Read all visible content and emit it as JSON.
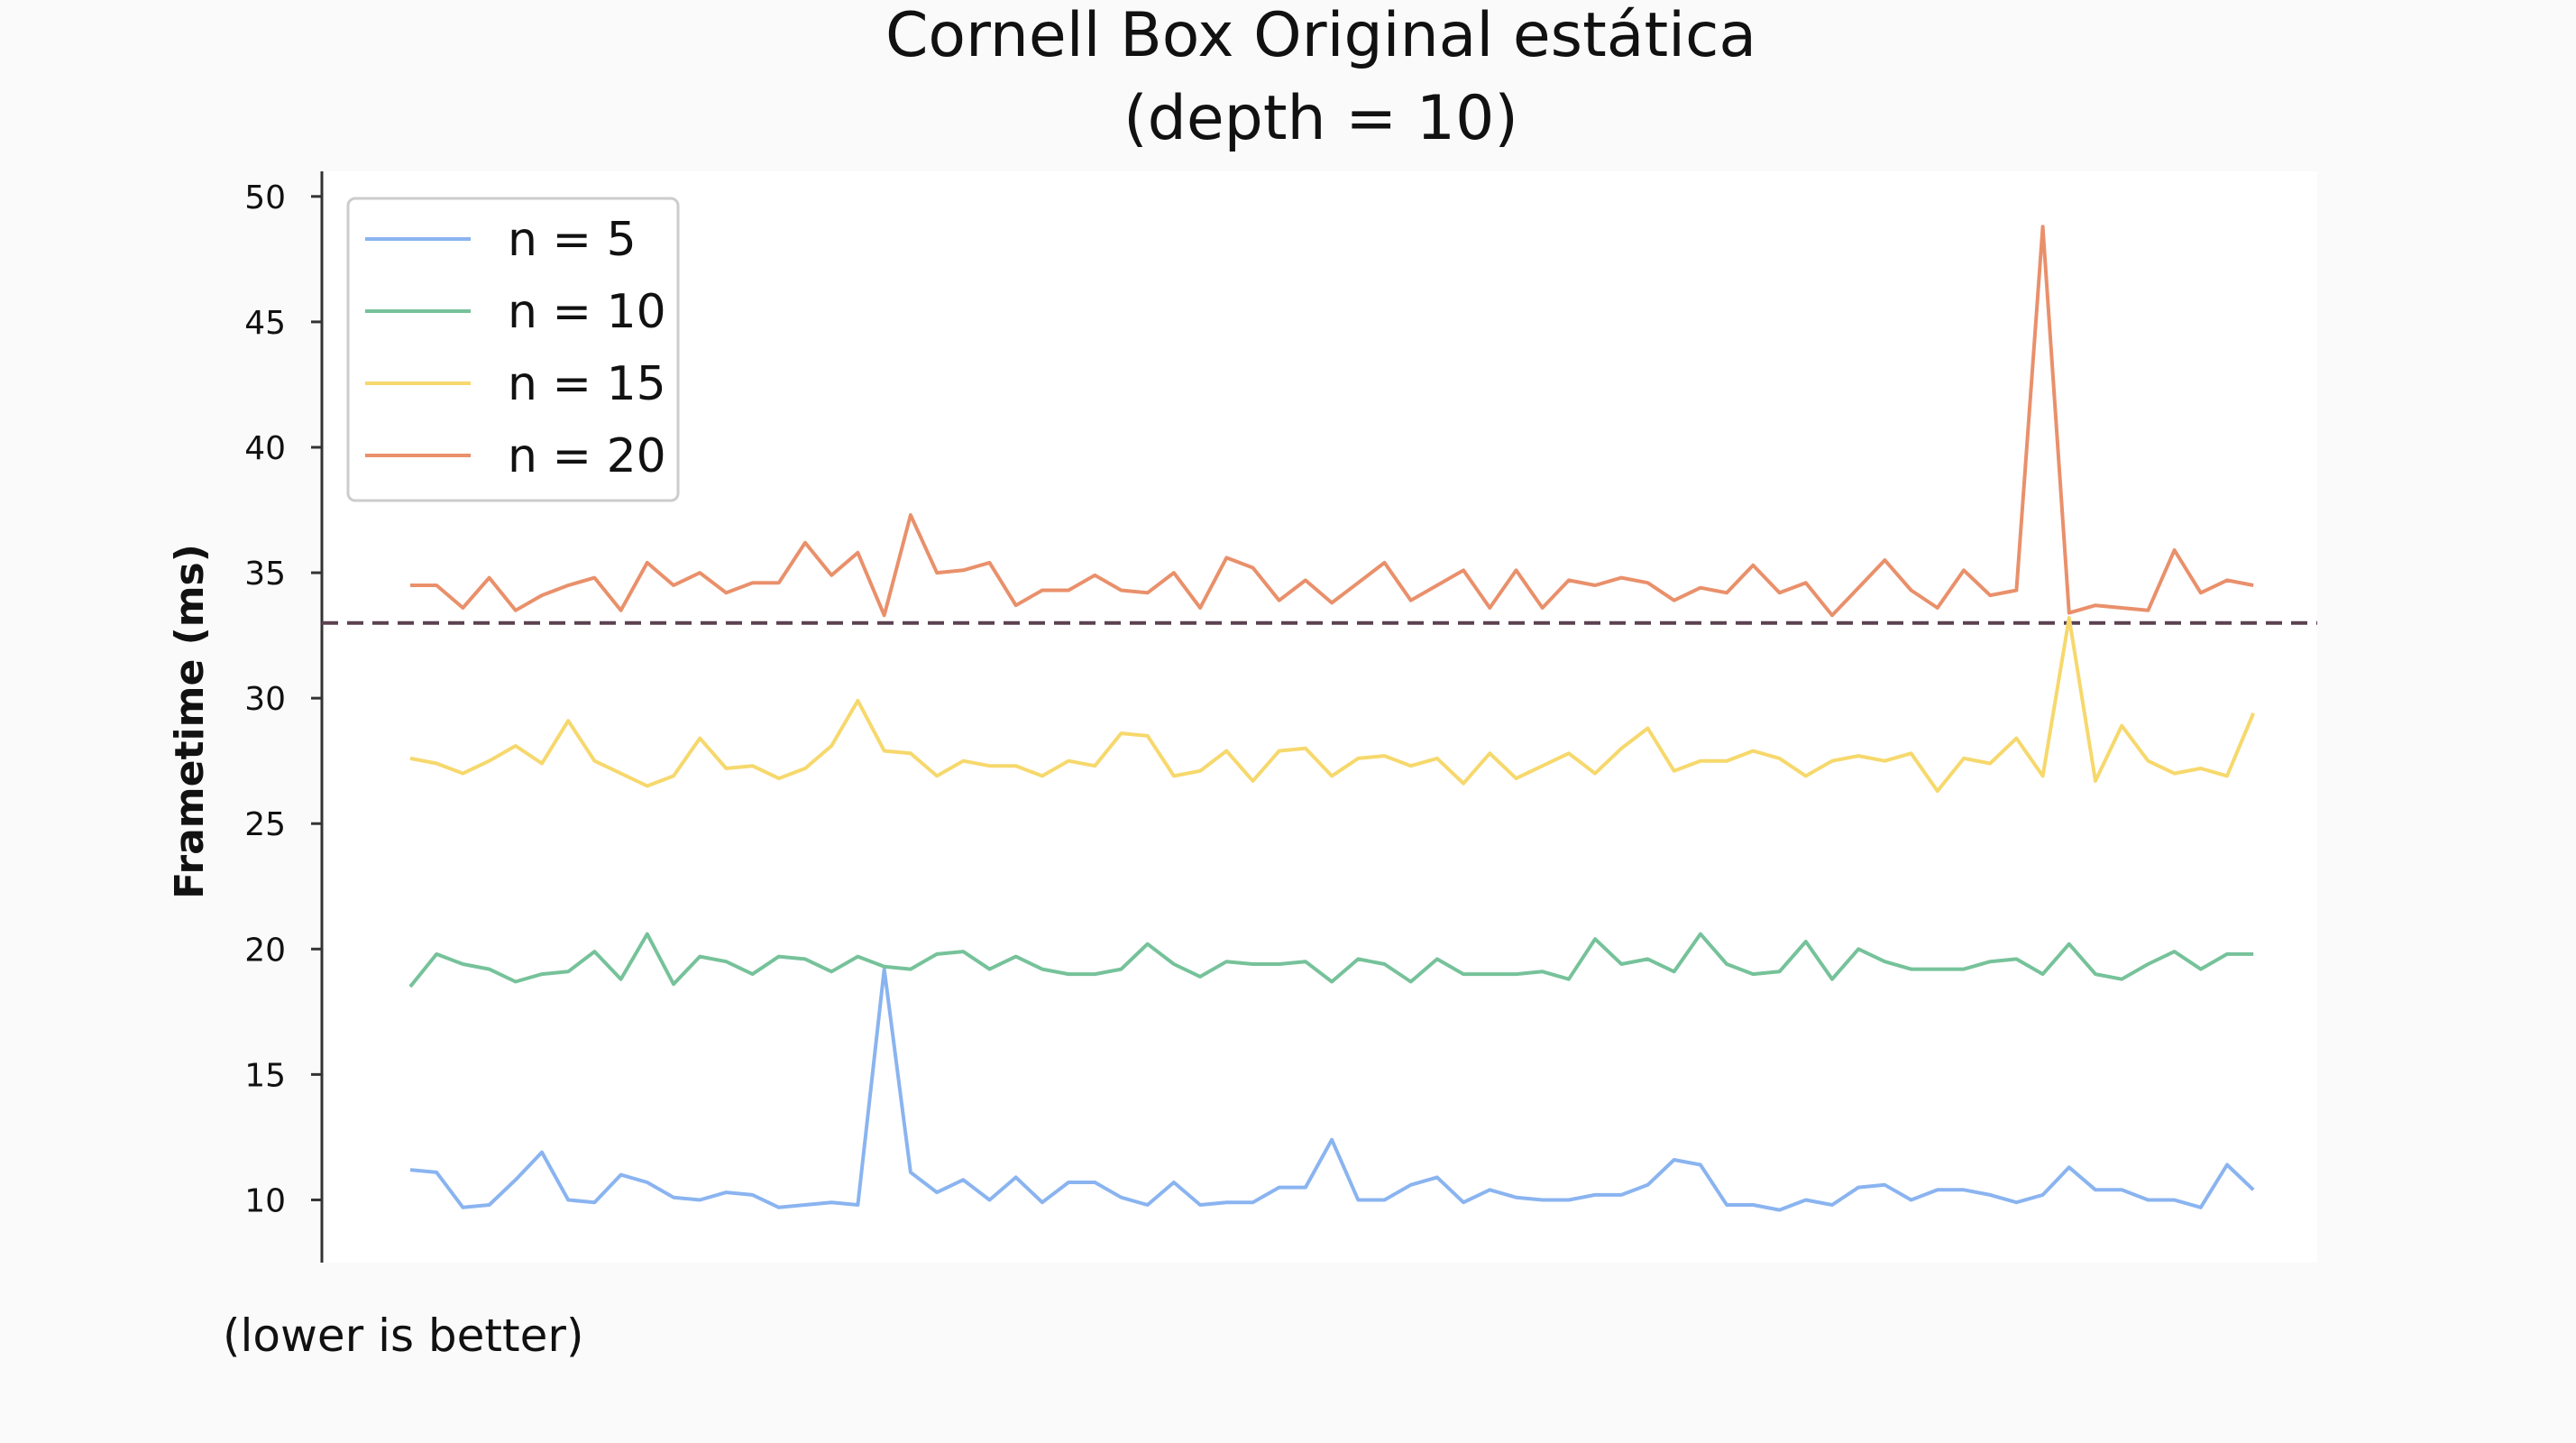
{
  "chart_data": {
    "type": "line",
    "title": "Cornell Box Original estática",
    "subtitle": "(depth = 10)",
    "xlabel": "",
    "ylabel": "Frametime (ms)",
    "note": "(lower is better)",
    "ylim": [
      7.5,
      51
    ],
    "y_ticks": [
      10,
      15,
      20,
      25,
      30,
      35,
      40,
      45,
      50
    ],
    "x_range": [
      0,
      69
    ],
    "grid": false,
    "legend_position": "top-left",
    "reference_line": {
      "y": 33,
      "style": "dashed",
      "color": "#5b4150"
    },
    "series": [
      {
        "name": "n = 5",
        "color": "#8ab4f0",
        "values": [
          11.2,
          11.1,
          9.7,
          9.8,
          10.8,
          11.9,
          10.0,
          9.9,
          11.0,
          10.7,
          10.1,
          10.0,
          10.3,
          10.2,
          9.7,
          9.8,
          9.9,
          9.8,
          19.2,
          11.1,
          10.3,
          10.8,
          10.0,
          10.9,
          9.9,
          10.7,
          10.7,
          10.1,
          9.8,
          10.7,
          9.8,
          9.9,
          9.9,
          10.5,
          10.5,
          12.4,
          10.0,
          10.0,
          10.6,
          10.9,
          9.9,
          10.4,
          10.1,
          10.0,
          10.0,
          10.2,
          10.2,
          10.6,
          11.6,
          11.4,
          9.8,
          9.8,
          9.6,
          10.0,
          9.8,
          10.5,
          10.6,
          10.0,
          10.4,
          10.4,
          10.2,
          9.9,
          10.2,
          11.3,
          10.4,
          10.4,
          10.0,
          10.0,
          9.7,
          11.4,
          10.4
        ]
      },
      {
        "name": "n = 10",
        "color": "#76c29a",
        "values": [
          18.5,
          19.8,
          19.4,
          19.2,
          18.7,
          19.0,
          19.1,
          19.9,
          18.8,
          20.6,
          18.6,
          19.7,
          19.5,
          19.0,
          19.7,
          19.6,
          19.1,
          19.7,
          19.3,
          19.2,
          19.8,
          19.9,
          19.2,
          19.7,
          19.2,
          19.0,
          19.0,
          19.2,
          20.2,
          19.4,
          18.9,
          19.5,
          19.4,
          19.4,
          19.5,
          18.7,
          19.6,
          19.4,
          18.7,
          19.6,
          19.0,
          19.0,
          19.0,
          19.1,
          18.8,
          20.4,
          19.4,
          19.6,
          19.1,
          20.6,
          19.4,
          19.0,
          19.1,
          20.3,
          18.8,
          20.0,
          19.5,
          19.2,
          19.2,
          19.2,
          19.5,
          19.6,
          19.0,
          20.2,
          19.0,
          18.8,
          19.4,
          19.9,
          19.2,
          19.8,
          19.8
        ]
      },
      {
        "name": "n = 15",
        "color": "#f6d86c",
        "values": [
          27.6,
          27.4,
          27.0,
          27.5,
          28.1,
          27.4,
          29.1,
          27.5,
          27.0,
          26.5,
          26.9,
          28.4,
          27.2,
          27.3,
          26.8,
          27.2,
          28.1,
          29.9,
          27.9,
          27.8,
          26.9,
          27.5,
          27.3,
          27.3,
          26.9,
          27.5,
          27.3,
          28.6,
          28.5,
          26.9,
          27.1,
          27.9,
          26.7,
          27.9,
          28.0,
          26.9,
          27.6,
          27.7,
          27.3,
          27.6,
          26.6,
          27.8,
          26.8,
          27.3,
          27.8,
          27.0,
          28.0,
          28.8,
          27.1,
          27.5,
          27.5,
          27.9,
          27.6,
          26.9,
          27.5,
          27.7,
          27.5,
          27.8,
          26.3,
          27.6,
          27.4,
          28.4,
          26.9,
          33.2,
          26.7,
          28.9,
          27.5,
          27.0,
          27.2,
          26.9,
          29.4
        ]
      },
      {
        "name": "n = 20",
        "color": "#e9906b",
        "values": [
          34.5,
          34.5,
          33.6,
          34.8,
          33.5,
          34.1,
          34.5,
          34.8,
          33.5,
          35.4,
          34.5,
          35.0,
          34.2,
          34.6,
          34.6,
          36.2,
          34.9,
          35.8,
          33.3,
          37.3,
          35.0,
          35.1,
          35.4,
          33.7,
          34.3,
          34.3,
          34.9,
          34.3,
          34.2,
          35.0,
          33.6,
          35.6,
          35.2,
          33.9,
          34.7,
          33.8,
          34.6,
          35.4,
          33.9,
          34.5,
          35.1,
          33.6,
          35.1,
          33.6,
          34.7,
          34.5,
          34.8,
          34.6,
          33.9,
          34.4,
          34.2,
          35.3,
          34.2,
          34.6,
          33.3,
          34.4,
          35.5,
          34.3,
          33.6,
          35.1,
          34.1,
          34.3,
          48.8,
          33.4,
          33.7,
          33.6,
          33.5,
          35.9,
          34.2,
          34.7,
          34.5
        ]
      }
    ]
  }
}
